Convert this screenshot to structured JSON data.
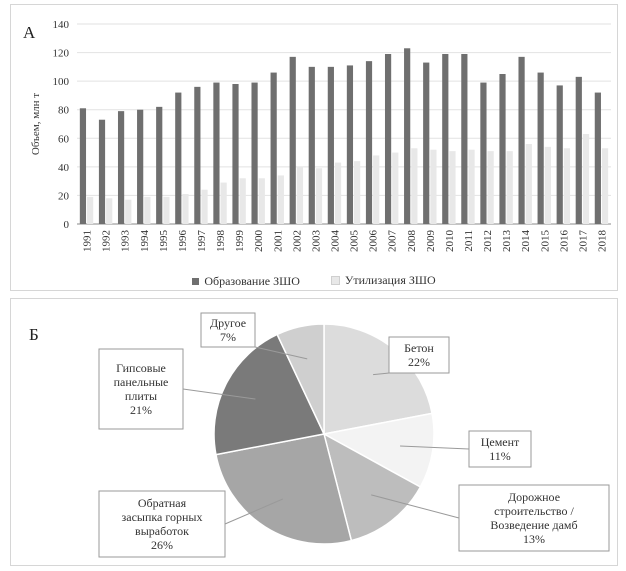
{
  "chart_data": [
    {
      "type": "bar",
      "panel": "А",
      "ylabel": "Объем, млн т",
      "ylim": [
        0,
        140
      ],
      "yticks": [
        0,
        20,
        40,
        60,
        80,
        100,
        120,
        140
      ],
      "grid": true,
      "categories": [
        "1991",
        "1992",
        "1993",
        "1994",
        "1995",
        "1996",
        "1997",
        "1998",
        "1999",
        "2000",
        "2001",
        "2002",
        "2003",
        "2004",
        "2005",
        "2006",
        "2007",
        "2008",
        "2009",
        "2010",
        "2011",
        "2012",
        "2013",
        "2014",
        "2015",
        "2016",
        "2017",
        "2018"
      ],
      "series": [
        {
          "name": "Образование ЗШО",
          "color": "#6f6f6f",
          "values": [
            81,
            73,
            79,
            80,
            82,
            92,
            96,
            99,
            98,
            99,
            106,
            117,
            110,
            110,
            111,
            114,
            119,
            123,
            113,
            119,
            119,
            99,
            105,
            117,
            106,
            97,
            103,
            92
          ]
        },
        {
          "name": "Утилизация ЗШО",
          "color": "#e8e8e8",
          "values": [
            19,
            18,
            17,
            19,
            19,
            21,
            24,
            29,
            32,
            32,
            34,
            40,
            39,
            43,
            44,
            48,
            50,
            53,
            52,
            51,
            52,
            51,
            51,
            56,
            54,
            53,
            63,
            53
          ]
        }
      ],
      "legend_position": "bottom"
    },
    {
      "type": "pie",
      "panel": "Б",
      "slices": [
        {
          "label": "Бетон",
          "value": 22,
          "pct": "22%",
          "color": "#dcdcdc"
        },
        {
          "label": "Цемент",
          "value": 11,
          "pct": "11%",
          "color": "#f3f3f3"
        },
        {
          "label": "Дорожное строительство / Возведение дамб",
          "value": 13,
          "pct": "13%",
          "color": "#bdbdbd"
        },
        {
          "label": "Обратная засыпка горных выработок",
          "value": 26,
          "pct": "26%",
          "color": "#a6a6a6"
        },
        {
          "label": "Гипсовые панельные плиты",
          "value": 21,
          "pct": "21%",
          "color": "#7a7a7a"
        },
        {
          "label": "Другое",
          "value": 7,
          "pct": "7%",
          "color": "#cfcfcf"
        }
      ],
      "callouts": [
        {
          "lines": [
            "Бетон"
          ],
          "pct": "22%"
        },
        {
          "lines": [
            "Цемент"
          ],
          "pct": "11%"
        },
        {
          "lines": [
            "Дорожное",
            "строительство /",
            "Возведение дамб"
          ],
          "pct": "13%"
        },
        {
          "lines": [
            "Обратная",
            "засыпка горных",
            "выработок"
          ],
          "pct": "26%"
        },
        {
          "lines": [
            "Гипсовые",
            "панельные",
            "плиты"
          ],
          "pct": "21%"
        },
        {
          "lines": [
            "Другое"
          ],
          "pct": "7%"
        }
      ]
    }
  ]
}
